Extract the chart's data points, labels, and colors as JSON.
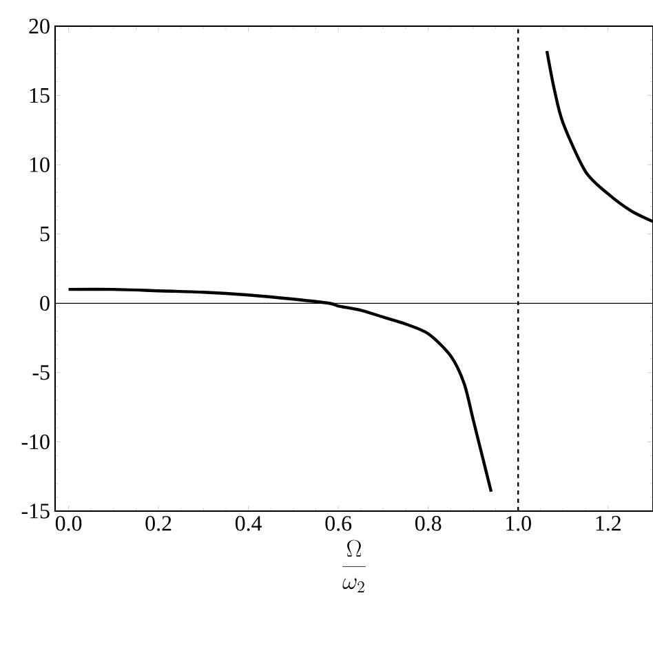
{
  "chart_data": {
    "type": "line",
    "xlabel": "\\frac{\\Omega}{\\omega_2}",
    "x": [
      0.0,
      0.1,
      0.2,
      0.3,
      0.4,
      0.5,
      0.58,
      0.6,
      0.65,
      0.7,
      0.75,
      0.8,
      0.85,
      0.88,
      0.9,
      0.92,
      0.94,
      1.0,
      1.064,
      1.08,
      1.1,
      1.15,
      1.2,
      1.25,
      1.3
    ],
    "series": [
      {
        "color": "#000000",
        "values": [
          1.0,
          1.0,
          0.9,
          0.8,
          0.6,
          0.3,
          0,
          -0.2,
          -0.5,
          -1.0,
          -1.5,
          -2.2,
          -3.8,
          -5.8,
          -8.4,
          -11,
          -13.6,
          null,
          18.2,
          15.5,
          13,
          9.5,
          7.9,
          6.7,
          5.9
        ]
      }
    ],
    "xlim": [
      -0.03,
      1.3
    ],
    "ylim": [
      -15,
      20
    ],
    "xticks": [
      {
        "value": 0,
        "label": "0.0"
      },
      0.2,
      0.4,
      0.6,
      0.8,
      {
        "value": 1,
        "label": "1.0"
      },
      1.2
    ],
    "yticks": [
      -15,
      -10,
      -5,
      0,
      5,
      10,
      15,
      20
    ],
    "ref_lines": [
      {
        "axis": "y",
        "value": 0,
        "line_style": "solid"
      },
      {
        "axis": "x",
        "value": 1,
        "line_style": "dashed"
      }
    ],
    "grid": false,
    "marker": "none",
    "line_style": "solid"
  }
}
